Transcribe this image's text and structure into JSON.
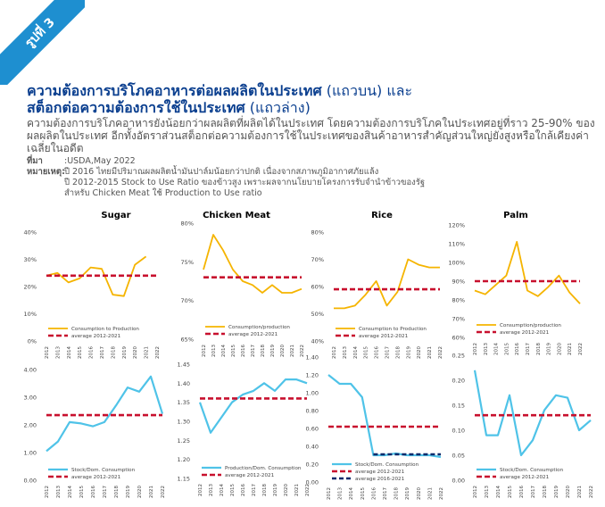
{
  "badge": "รูปที่ 3",
  "title_line1": "ความต้องการบริโภคอาหารต่อผลผลิตในประเทศ",
  "title_line1_sub": " (แถวบน) และ",
  "title_line2": "สต็อกต่อความต้องการใช้ในประเทศ",
  "title_line2_sub": " (แถวล่าง)",
  "description": "ความต้องการบริโภคอาหารยังน้อยกว่าผลผลิตที่ผลิตได้ในประเทศ โดยความต้องการบริโภคในประเทศอยู่ที่ราว 25-90% ของผลผลิตในประเทศ อีกทั้งอัตราส่วนสต็อกต่อความต้องการใช้ในประเทศของสินค้าอาหารสำคัญส่วนใหญ่ยังสูงหรือใกล้เคียงค่าเฉลี่ยในอดีต",
  "source_label": "ที่มา",
  "source_text": ":USDA,May 2022",
  "note_label": "หมายเหตุ:",
  "note_1": "ปี 2016 ไทยมีปริมาณผลผลิตน้ำมันปาล์มน้อยกว่าปกติ เนื่องจากสภาพภูมิอากาศภัยแล้ง",
  "note_2": "ปี 2012-2015 Stock to Use Ratio ของข้าวสูง เพราะผลจากนโยบายโครงการรับจำนำข้าวของรัฐ",
  "note_3": "สำหรับ Chicken Meat ใช้ Production to Use ratio",
  "colors": {
    "yellow": "#f5b400",
    "red": "#c8102e",
    "blue": "#4fc3e8",
    "navy": "#0b2a6b",
    "title": "#0b3f8f",
    "badge": "#1e8fd0"
  },
  "chart_data": [
    {
      "type": "line",
      "title": "Sugar",
      "x": [
        "2012",
        "2013",
        "2014",
        "2015",
        "2016",
        "2017",
        "2018",
        "2019",
        "2020",
        "2021",
        "2022"
      ],
      "series": [
        {
          "name": "Consumption to Production",
          "values": [
            24,
            25,
            21.5,
            23,
            27,
            26.5,
            17,
            16.5,
            28,
            31,
            null
          ]
        },
        {
          "name": "average 2012-2021",
          "values": [
            24,
            24,
            24,
            24,
            24,
            24,
            24,
            24,
            24,
            24,
            24
          ]
        }
      ],
      "yticks": [
        "0%",
        "10%",
        "20%",
        "30%",
        "40%"
      ],
      "ylim": [
        0,
        40
      ]
    },
    {
      "type": "line",
      "title": "Chicken Meat",
      "x": [
        "2012",
        "2013",
        "2014",
        "2015",
        "2016",
        "2017",
        "2018",
        "2019",
        "2020",
        "2021",
        "2022"
      ],
      "series": [
        {
          "name": "Consumption/production",
          "values": [
            74,
            78.5,
            76.5,
            74,
            72.5,
            72,
            71,
            72,
            71,
            71,
            71.5
          ]
        },
        {
          "name": "average 2012-2021",
          "values": [
            73,
            73,
            73,
            73,
            73,
            73,
            73,
            73,
            73,
            73,
            73
          ]
        }
      ],
      "yticks": [
        "65%",
        "70%",
        "75%",
        "80%"
      ],
      "ylim": [
        65,
        80
      ]
    },
    {
      "type": "line",
      "title": "Rice",
      "x": [
        "2012",
        "2013",
        "2014",
        "2015",
        "2016",
        "2017",
        "2018",
        "2019",
        "2020",
        "2021",
        "2022"
      ],
      "series": [
        {
          "name": "Consumption to Production",
          "values": [
            52,
            52,
            53,
            57,
            62,
            53,
            58,
            70,
            68,
            67,
            67
          ]
        },
        {
          "name": "average 2012-2021",
          "values": [
            59,
            59,
            59,
            59,
            59,
            59,
            59,
            59,
            59,
            59,
            59
          ]
        }
      ],
      "yticks": [
        "40%",
        "50%",
        "60%",
        "70%",
        "80%"
      ],
      "ylim": [
        40,
        80
      ]
    },
    {
      "type": "line",
      "title": "Palm",
      "x": [
        "2012",
        "2013",
        "2014",
        "2015",
        "2016",
        "2017",
        "2018",
        "2019",
        "2020",
        "2021",
        "2022"
      ],
      "series": [
        {
          "name": "Consumption/production",
          "values": [
            85,
            83,
            88,
            93,
            111,
            85,
            82,
            87,
            93,
            84,
            78
          ]
        },
        {
          "name": "average 2012-2021",
          "values": [
            90,
            90,
            90,
            90,
            90,
            90,
            90,
            90,
            90,
            90,
            90
          ]
        }
      ],
      "yticks": [
        "60%",
        "70%",
        "80%",
        "90%",
        "100%",
        "110%",
        "120%"
      ],
      "ylim": [
        60,
        120
      ]
    },
    {
      "type": "line",
      "title": "",
      "x": [
        "2012",
        "2013",
        "2014",
        "2015",
        "2016",
        "2017",
        "2018",
        "2019",
        "2020",
        "2021",
        "2022"
      ],
      "series": [
        {
          "name": "Stock/Dom. Consumption",
          "values": [
            1.05,
            1.4,
            2.1,
            2.05,
            1.95,
            2.1,
            2.7,
            3.35,
            3.2,
            3.75,
            2.4
          ]
        },
        {
          "name": "average 2012-2021",
          "values": [
            2.35,
            2.35,
            2.35,
            2.35,
            2.35,
            2.35,
            2.35,
            2.35,
            2.35,
            2.35,
            2.35
          ]
        }
      ],
      "yticks": [
        "0.00",
        "1.00",
        "2.00",
        "3.00",
        "4.00"
      ],
      "ylim": [
        0,
        4
      ]
    },
    {
      "type": "line",
      "title": "",
      "x": [
        "2012",
        "2013",
        "2014",
        "2015",
        "2016",
        "2017",
        "2018",
        "2019",
        "2020",
        "2021",
        "2022"
      ],
      "series": [
        {
          "name": "Production/Dom. Consumption",
          "values": [
            1.35,
            1.27,
            1.31,
            1.35,
            1.37,
            1.38,
            1.4,
            1.38,
            1.41,
            1.41,
            1.4
          ]
        },
        {
          "name": "average 2012-2021",
          "values": [
            1.36,
            1.36,
            1.36,
            1.36,
            1.36,
            1.36,
            1.36,
            1.36,
            1.36,
            1.36,
            1.36
          ]
        }
      ],
      "yticks": [
        "1.15",
        "1.20",
        "1.25",
        "1.30",
        "1.35",
        "1.40",
        "1.45"
      ],
      "ylim": [
        1.15,
        1.45
      ]
    },
    {
      "type": "line",
      "title": "",
      "x": [
        "2012",
        "2013",
        "2014",
        "2015",
        "2016",
        "2017",
        "2018",
        "2019",
        "2020",
        "2021",
        "2022"
      ],
      "series": [
        {
          "name": "Stock/Dom. Consumption",
          "values": [
            1.2,
            1.1,
            1.1,
            0.95,
            0.3,
            0.3,
            0.32,
            0.3,
            0.3,
            0.3,
            0.28
          ]
        },
        {
          "name": "average 2012-2021",
          "values": [
            0.62,
            0.62,
            0.62,
            0.62,
            0.62,
            0.62,
            0.62,
            0.62,
            0.62,
            0.62,
            0.62
          ]
        },
        {
          "name": "average 2016-2021",
          "values": [
            null,
            null,
            null,
            null,
            0.31,
            0.31,
            0.31,
            0.31,
            0.31,
            0.31,
            0.31
          ]
        }
      ],
      "yticks": [
        "0.00",
        "0.20",
        "0.40",
        "0.60",
        "0.80",
        "1.00",
        "1.20",
        "1.40"
      ],
      "ylim": [
        0,
        1.4
      ]
    },
    {
      "type": "line",
      "title": "",
      "x": [
        "2012",
        "2013",
        "2014",
        "2015",
        "2016",
        "2017",
        "2018",
        "2019",
        "2020",
        "2021",
        "2022"
      ],
      "series": [
        {
          "name": "Stock/Dom. Consumption",
          "values": [
            0.22,
            0.09,
            0.09,
            0.17,
            0.05,
            0.08,
            0.14,
            0.17,
            0.165,
            0.1,
            0.12
          ]
        },
        {
          "name": "average 2012-2021",
          "values": [
            0.13,
            0.13,
            0.13,
            0.13,
            0.13,
            0.13,
            0.13,
            0.13,
            0.13,
            0.13,
            0.13
          ]
        }
      ],
      "yticks": [
        "0.00",
        "0.05",
        "0.10",
        "0.15",
        "0.20",
        "0.25"
      ],
      "ylim": [
        0,
        0.25
      ]
    }
  ]
}
